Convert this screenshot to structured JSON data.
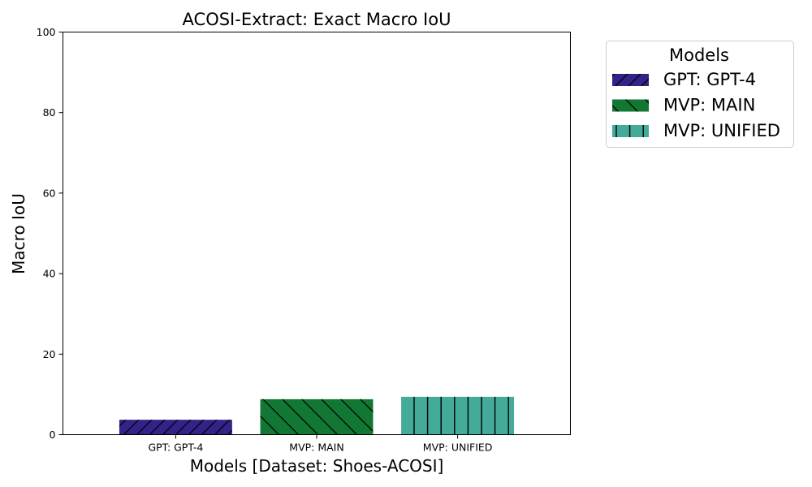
{
  "chart_data": {
    "type": "bar",
    "title": "ACOSI-Extract: Exact Macro IoU",
    "xlabel": "Models [Dataset: Shoes-ACOSI]",
    "ylabel": "Macro IoU",
    "ylim": [
      0,
      100
    ],
    "yticks": [
      "0",
      "20",
      "40",
      "60",
      "80",
      "100"
    ],
    "categories": [
      "GPT: GPT-4",
      "MVP: MAIN",
      "MVP: UNIFIED"
    ],
    "values": [
      3.7,
      8.8,
      9.4
    ],
    "colors": [
      "#332288",
      "#117733",
      "#44AA99"
    ],
    "hatches": [
      "forward-diagonal",
      "back-diagonal",
      "vertical"
    ],
    "grid": false,
    "legend": {
      "title": "Models",
      "placement": "outside-right",
      "entries": [
        "GPT: GPT-4",
        "MVP: MAIN",
        "MVP: UNIFIED"
      ]
    }
  }
}
